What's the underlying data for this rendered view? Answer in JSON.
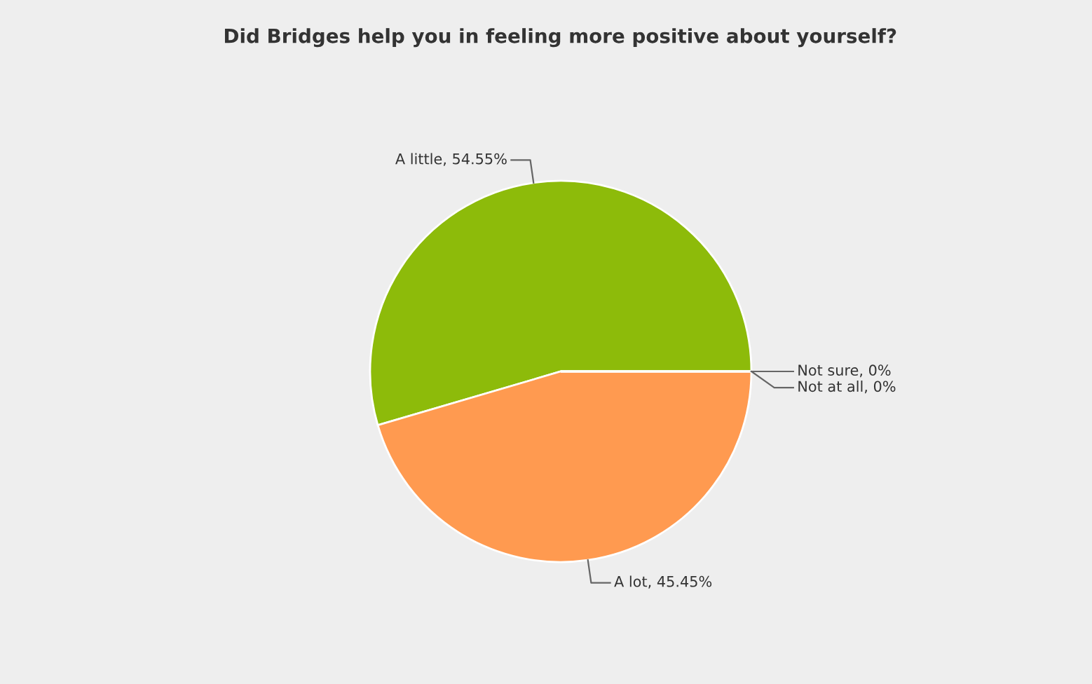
{
  "chart_data": {
    "type": "pie",
    "title": "Did Bridges help you in feeling more positive about yourself?",
    "categories": [
      "A little",
      "A lot",
      "Not sure",
      "Not at all"
    ],
    "values": [
      54.55,
      45.45,
      0,
      0
    ],
    "colors": [
      "#8dbb0a",
      "#ff9a50",
      "#4572a7",
      "#aa4643"
    ],
    "value_labels": [
      ", 54.55%",
      ", 45.45%",
      ", 0%",
      ", 0%"
    ]
  }
}
